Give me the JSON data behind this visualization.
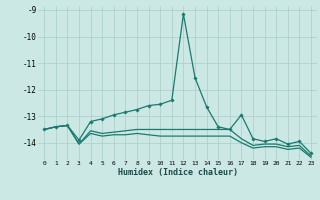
{
  "xlabel": "Humidex (Indice chaleur)",
  "x": [
    0,
    1,
    2,
    3,
    4,
    5,
    6,
    7,
    8,
    9,
    10,
    11,
    12,
    13,
    14,
    15,
    16,
    17,
    18,
    19,
    20,
    21,
    22,
    23
  ],
  "line1": [
    -13.5,
    -13.4,
    -13.35,
    -13.9,
    -13.2,
    -13.1,
    -12.95,
    -12.85,
    -12.75,
    -12.6,
    -12.55,
    -12.4,
    -9.15,
    -11.55,
    -12.65,
    -13.4,
    -13.5,
    -12.95,
    -13.85,
    -13.95,
    -13.85,
    -14.05,
    -13.95,
    -14.4
  ],
  "line2": [
    -13.5,
    -13.4,
    -13.35,
    -14.05,
    -13.55,
    -13.65,
    -13.6,
    -13.55,
    -13.5,
    -13.5,
    -13.5,
    -13.5,
    -13.5,
    -13.5,
    -13.5,
    -13.5,
    -13.5,
    -13.85,
    -14.1,
    -14.05,
    -14.05,
    -14.15,
    -14.1,
    -14.5
  ],
  "line3": [
    -13.5,
    -13.4,
    -13.35,
    -14.05,
    -13.65,
    -13.75,
    -13.7,
    -13.7,
    -13.65,
    -13.7,
    -13.75,
    -13.75,
    -13.75,
    -13.75,
    -13.75,
    -13.75,
    -13.75,
    -14.0,
    -14.2,
    -14.15,
    -14.15,
    -14.25,
    -14.2,
    -14.55
  ],
  "ylim": [
    -14.65,
    -8.85
  ],
  "yticks": [
    -9,
    -10,
    -11,
    -12,
    -13,
    -14
  ],
  "xtick_labels": [
    "0",
    "1",
    "2",
    "3",
    "4",
    "5",
    "6",
    "7",
    "8",
    "9",
    "10",
    "11",
    "12",
    "13",
    "14",
    "15",
    "16",
    "17",
    "18",
    "19",
    "20",
    "21",
    "22",
    "23"
  ],
  "line_color": "#1a7a6e",
  "bg_color": "#cce8e4",
  "grid_color": "#aaccc8"
}
